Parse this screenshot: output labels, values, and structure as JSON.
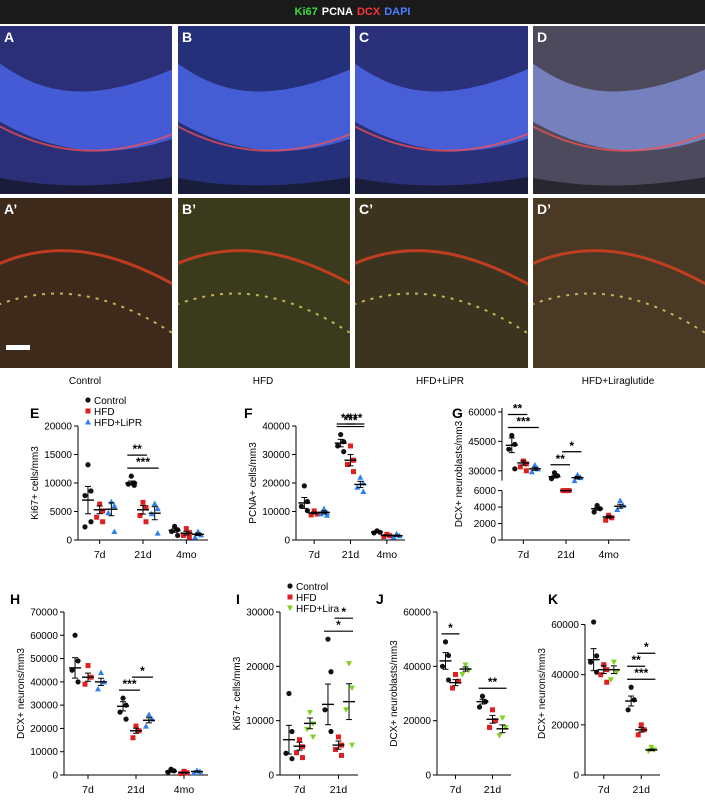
{
  "legend_top": [
    {
      "text": "Ki67",
      "color": "#3ddc3d"
    },
    {
      "text": "PCNA",
      "color": "#ffffff"
    },
    {
      "text": "DCX",
      "color": "#ff3333"
    },
    {
      "text": "DAPI",
      "color": "#4a7dff"
    }
  ],
  "micro_labels": [
    "A",
    "B",
    "C",
    "D",
    "A’",
    "B’",
    "C’",
    "D’"
  ],
  "conditions": [
    "Control",
    "HFD",
    "HFD+LiPR",
    "HFD+Liraglutide"
  ],
  "colors": {
    "control": "#111111",
    "hfd": "#e02020",
    "lipr": "#2f80ed",
    "lira": "#7ed321"
  },
  "chart_data": [
    {
      "id": "E",
      "type": "scatter",
      "ylabel": "Ki67+ cells/mm3",
      "categories": [
        "7d",
        "21d",
        "4mo"
      ],
      "yticks": [
        0,
        5000,
        10000,
        15000,
        20000
      ],
      "ylim": [
        0,
        20000
      ],
      "legend": [
        "Control",
        "HFD",
        "HFD+LiPR"
      ],
      "groups": [
        [
          7000,
          5300,
          5400
        ],
        [
          10000,
          5300,
          4700
        ],
        [
          1700,
          1200,
          1000
        ]
      ],
      "points": [
        [
          [
            13200,
            8600,
            7800,
            3200,
            2300
          ],
          [
            6300,
            5100,
            4000,
            3200
          ],
          [
            6700,
            6000,
            4800,
            1500
          ]
        ],
        [
          [
            11200,
            10000,
            9800,
            9600
          ],
          [
            6600,
            5700,
            4300,
            3200
          ],
          [
            6400,
            5500,
            4600,
            1200
          ]
        ],
        [
          [
            2400,
            1800,
            1500,
            800
          ],
          [
            2000,
            1300,
            800,
            500
          ],
          [
            1500,
            900,
            500
          ]
        ]
      ],
      "sig": [
        {
          "text": "***",
          "from": 0,
          "to": 2,
          "cat": 1
        },
        {
          "text": "**",
          "from": 0,
          "to": 1,
          "cat": 1
        }
      ]
    },
    {
      "id": "F",
      "type": "scatter",
      "ylabel": "PCNA+ cells/mm3",
      "categories": [
        "7d",
        "21d",
        "4mo"
      ],
      "yticks": [
        0,
        10000,
        20000,
        30000,
        40000
      ],
      "ylim": [
        0,
        40000
      ],
      "groups": [
        [
          13000,
          9500,
          9700
        ],
        [
          34000,
          28000,
          19500
        ],
        [
          2800,
          1600,
          1500
        ]
      ],
      "points": [
        [
          [
            19000,
            13500,
            11800,
            10300
          ],
          [
            10200,
            9100,
            8800
          ],
          [
            11000,
            9600,
            9200,
            8700
          ]
        ],
        [
          [
            37000,
            34500,
            33000,
            31000
          ],
          [
            33000,
            28000,
            26500,
            24000
          ],
          [
            22000,
            20000,
            18500,
            17000
          ]
        ],
        [
          [
            3200,
            2700,
            2500
          ],
          [
            2000,
            1500,
            1200
          ],
          [
            2200,
            1500,
            1100
          ]
        ]
      ],
      "sig": [
        {
          "text": "***",
          "from": 0,
          "to": 2,
          "cat": 1
        },
        {
          "text": "**",
          "from": 0,
          "to": 1,
          "cat": 1
        },
        {
          "text": "***",
          "from": 1,
          "to": 2,
          "cat": 1
        }
      ]
    },
    {
      "id": "G",
      "type": "scatter",
      "ylabel": "DCX+ neuroblasts/mm3",
      "categories": [
        "7d",
        "21d",
        "4mo"
      ],
      "upper_ticks": [
        30000,
        45000,
        60000
      ],
      "lower_ticks": [
        0,
        2000,
        4000,
        6000
      ],
      "groups": [
        [
          43000,
          34000,
          31000
        ],
        [
          27000,
          20500,
          26500
        ],
        [
          3800,
          2800,
          4100
        ]
      ],
      "points": [
        [
          [
            48000,
            43500,
            41000,
            31000
          ],
          [
            35000,
            33500,
            32000,
            30000
          ],
          [
            33000,
            31000,
            29500
          ]
        ],
        [
          [
            29000,
            27500,
            26000
          ],
          [
            22000,
            20500,
            18000
          ],
          [
            28000,
            26500,
            25000
          ]
        ],
        [
          [
            4200,
            3800,
            3400
          ],
          [
            3000,
            2700,
            2400
          ],
          [
            4800,
            4200,
            3700
          ]
        ]
      ],
      "sig": [
        {
          "text": "***",
          "from": 0,
          "to": 2,
          "cat": 0
        },
        {
          "text": "**",
          "from": 0,
          "to": 1,
          "cat": 0
        },
        {
          "text": "**",
          "from": 0,
          "to": 1,
          "cat": 1
        },
        {
          "text": "*",
          "from": 1,
          "to": 2,
          "cat": 1
        }
      ]
    },
    {
      "id": "H",
      "type": "scatter",
      "ylabel": "DCX+ neurons/mm3",
      "categories": [
        "7d",
        "21d",
        "4mo"
      ],
      "yticks": [
        0,
        10000,
        20000,
        30000,
        40000,
        50000,
        60000,
        70000
      ],
      "ylim": [
        0,
        70000
      ],
      "groups": [
        [
          46000,
          42000,
          40000
        ],
        [
          29500,
          19000,
          23500
        ],
        [
          1500,
          1000,
          1500
        ]
      ],
      "points": [
        [
          [
            60000,
            49000,
            45000,
            40000
          ],
          [
            47000,
            42000,
            39000
          ],
          [
            44000,
            40000,
            37000
          ]
        ],
        [
          [
            33000,
            30000,
            27000,
            24000
          ],
          [
            21000,
            19000,
            16000
          ],
          [
            26000,
            24000,
            21000
          ]
        ],
        [
          [
            2500,
            1800,
            1200
          ],
          [
            1600,
            1000,
            600
          ],
          [
            2000,
            1500,
            1000
          ]
        ]
      ],
      "sig": [
        {
          "text": "***",
          "from": 0,
          "to": 1,
          "cat": 1
        },
        {
          "text": "*",
          "from": 1,
          "to": 2,
          "cat": 1
        }
      ]
    },
    {
      "id": "I",
      "type": "scatter",
      "ylabel": "Ki67+ cells/mm3",
      "categories": [
        "7d",
        "21d"
      ],
      "yticks": [
        0,
        10000,
        20000,
        30000
      ],
      "ylim": [
        0,
        30000
      ],
      "legend": [
        "Control",
        "HFD",
        "HFD+Lira"
      ],
      "groups": [
        [
          6500,
          5300,
          9500
        ],
        [
          13000,
          5500,
          13500
        ]
      ],
      "points": [
        [
          [
            15000,
            8000,
            4000,
            3000
          ],
          [
            6500,
            5200,
            4100,
            3200
          ],
          [
            11500,
            9400,
            8400,
            7000
          ]
        ],
        [
          [
            25000,
            19000,
            12000,
            8000
          ],
          [
            7000,
            5500,
            4700,
            3600
          ],
          [
            20500,
            16000,
            12000,
            5500
          ]
        ]
      ],
      "sig": [
        {
          "text": "*",
          "from": 0,
          "to": 2,
          "cat": 1
        },
        {
          "text": "*",
          "from": 1,
          "to": 2,
          "cat": 1
        }
      ]
    },
    {
      "id": "J",
      "type": "scatter",
      "ylabel": "DCX+ neuroblasts/mm3",
      "categories": [
        "7d",
        "21d"
      ],
      "yticks": [
        0,
        20000,
        40000,
        60000
      ],
      "ylim": [
        0,
        60000
      ],
      "groups": [
        [
          42000,
          34000,
          39000
        ],
        [
          27000,
          20500,
          17000
        ]
      ],
      "points": [
        [
          [
            49000,
            44000,
            40000,
            35000
          ],
          [
            37000,
            34500,
            32000
          ],
          [
            40500,
            38500,
            37000
          ]
        ],
        [
          [
            29000,
            27000,
            25000
          ],
          [
            24000,
            20000,
            17500
          ],
          [
            21000,
            17500,
            14500
          ]
        ]
      ],
      "sig": [
        {
          "text": "*",
          "from": 0,
          "to": 1,
          "cat": 0
        },
        {
          "text": "**",
          "from": 0,
          "to": 2,
          "cat": 1
        }
      ]
    },
    {
      "id": "K",
      "type": "scatter",
      "ylabel": "DCX+ neurons/mm3",
      "categories": [
        "7d",
        "21d"
      ],
      "yticks": [
        0,
        20000,
        40000,
        60000
      ],
      "ylim": [
        0,
        65000
      ],
      "groups": [
        [
          46000,
          42000,
          42000
        ],
        [
          29500,
          18000,
          10000
        ]
      ],
      "points": [
        [
          [
            61000,
            47500,
            45000,
            41000
          ],
          [
            44000,
            42000,
            40000,
            37000
          ],
          [
            45000,
            41000,
            38000
          ]
        ],
        [
          [
            35000,
            30000,
            26000
          ],
          [
            20000,
            18000,
            16000
          ],
          [
            11000,
            10000,
            9500
          ]
        ]
      ],
      "sig": [
        {
          "text": "***",
          "from": 0,
          "to": 2,
          "cat": 1
        },
        {
          "text": "**",
          "from": 0,
          "to": 1,
          "cat": 1
        },
        {
          "text": "*",
          "from": 1,
          "to": 2,
          "cat": 1
        }
      ]
    }
  ]
}
